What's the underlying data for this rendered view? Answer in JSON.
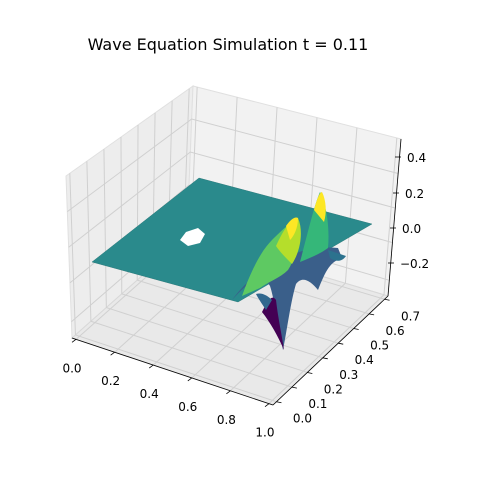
{
  "chart_data": {
    "type": "surface3d",
    "title": "Wave Equation Simulation t = 0.11",
    "colormap": "viridis",
    "grid": true,
    "pane_color": "#f2f2f2",
    "x_ticks": [
      "0.0",
      "0.2",
      "0.4",
      "0.6",
      "0.8",
      "1.0"
    ],
    "y_ticks": [
      "0.0",
      "0.1",
      "0.2",
      "0.3",
      "0.4",
      "0.5",
      "0.6",
      "0.7"
    ],
    "z_ticks": [
      "−0.2",
      "0.0",
      "0.2",
      "0.4"
    ],
    "xlim": [
      0,
      1.0
    ],
    "ylim": [
      0,
      0.72
    ],
    "zlim": [
      -0.35,
      0.5
    ],
    "surface_color_flat": "#2a8a8c",
    "hole": {
      "x": 0.22,
      "y": 0.55,
      "r": 0.045
    },
    "wave_samples": [
      {
        "x": 0.62,
        "y": 0.05,
        "z": -0.36
      },
      {
        "x": 0.66,
        "y": 0.18,
        "z": 0.22
      },
      {
        "x": 0.74,
        "y": 0.3,
        "z": 0.25
      },
      {
        "x": 0.82,
        "y": 0.45,
        "z": 0.1
      },
      {
        "x": 0.87,
        "y": 0.6,
        "z": 0.28
      },
      {
        "x": 0.92,
        "y": 0.68,
        "z": -0.1
      }
    ]
  }
}
